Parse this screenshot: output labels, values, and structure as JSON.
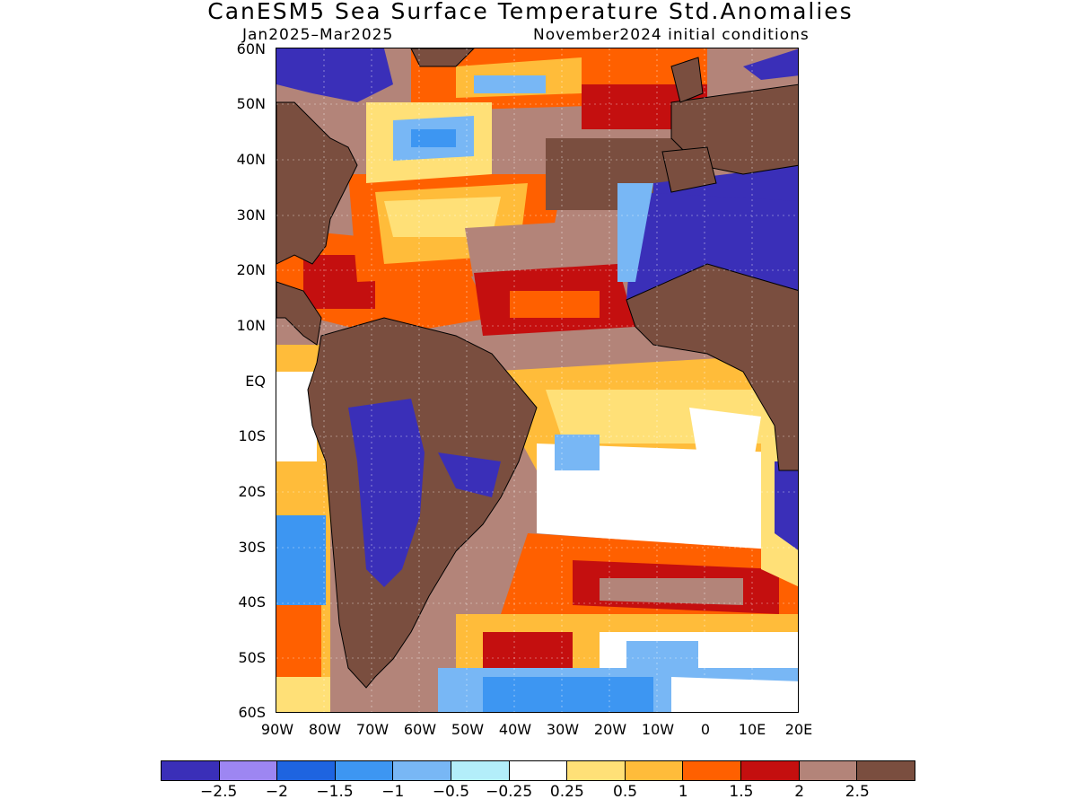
{
  "map": {
    "title": "CanESM5 Sea Surface Temperature Std.Anomalies",
    "period": "Jan2025–Mar2025",
    "initial_conditions": "November2024 initial conditions",
    "lat_labels": [
      "60N",
      "50N",
      "40N",
      "30N",
      "20N",
      "10N",
      "EQ",
      "10S",
      "20S",
      "30S",
      "40S",
      "50S",
      "60S"
    ],
    "lon_labels": [
      "90W",
      "80W",
      "70W",
      "60W",
      "50W",
      "40W",
      "30W",
      "20W",
      "10W",
      "0",
      "10E",
      "20E"
    ],
    "extent": {
      "lon_min": -90,
      "lon_max": 20,
      "lat_min": -60,
      "lat_max": 60
    },
    "land_color": "#7a4e3f",
    "colorbar": {
      "colors": [
        "#3a2fb8",
        "#9d86f2",
        "#1e64e0",
        "#3d96f2",
        "#78b7f5",
        "#b3eefa",
        "#ffffff",
        "#ffe077",
        "#ffbc3a",
        "#ff6000",
        "#c40f0f",
        "#b38479",
        "#7a4e3f"
      ],
      "labels": [
        "−2.5",
        "−2",
        "−1.5",
        "−1",
        "−0.5",
        "−0.25",
        "0.25",
        "0.5",
        "1",
        "1.5",
        "2",
        "2.5"
      ]
    }
  }
}
